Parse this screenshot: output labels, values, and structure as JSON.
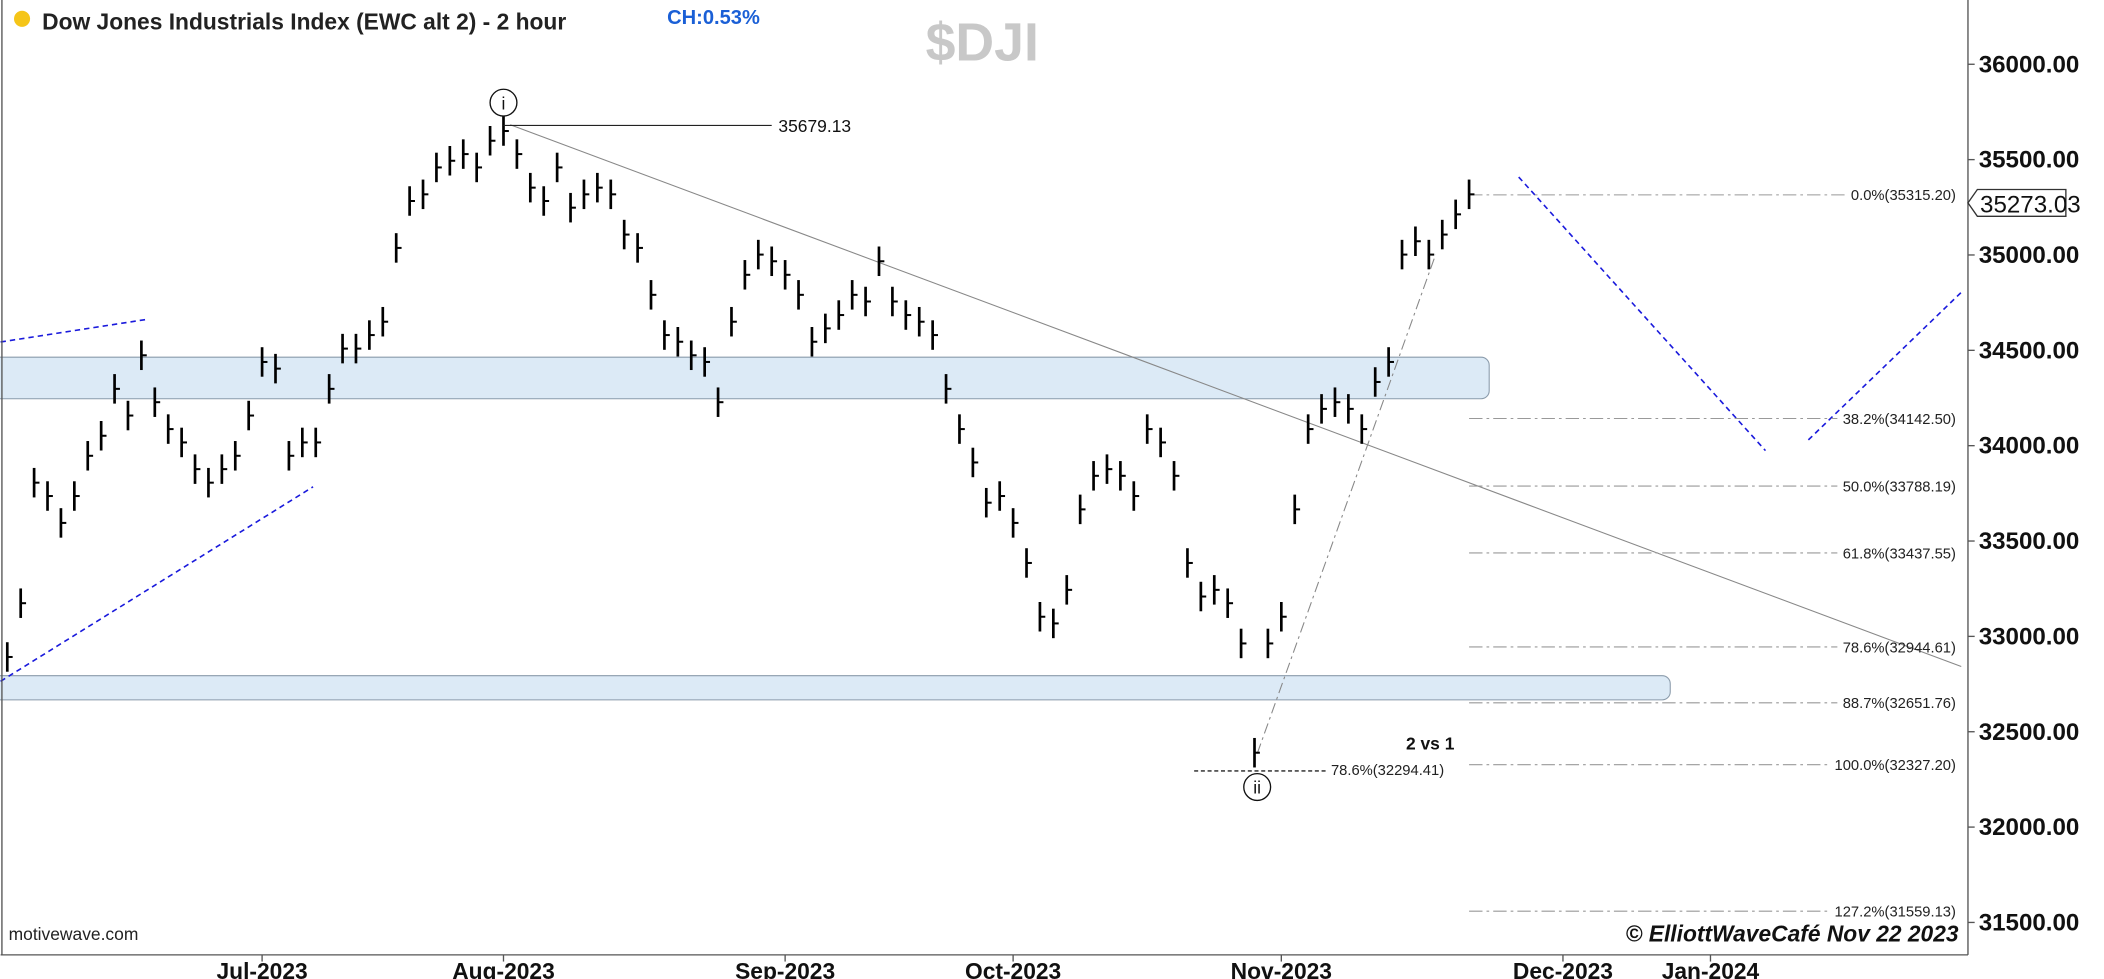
{
  "title": "Dow Jones Industrials Index (EWC alt 2) - 2 hour",
  "change": "CH:0.53%",
  "symbol": "$DJI",
  "watermark": "motivewave.com",
  "copyright": "© ElliottWaveCafé Nov 22 2023",
  "chart_data": {
    "type": "ohlc",
    "color": "#000000",
    "categories": [
      null,
      null,
      null,
      null,
      null,
      null,
      null,
      null,
      null,
      null,
      null,
      null,
      null,
      null,
      null,
      null,
      null,
      null,
      null,
      "Jul-2023",
      null,
      null,
      null,
      null,
      null,
      null,
      null,
      null,
      null,
      null,
      null,
      null,
      null,
      null,
      null,
      null,
      null,
      "Aug-2023",
      null,
      null,
      null,
      null,
      null,
      null,
      null,
      null,
      null,
      null,
      null,
      null,
      null,
      null,
      null,
      null,
      null,
      null,
      null,
      null,
      "Sep-2023",
      null,
      null,
      null,
      null,
      null,
      null,
      null,
      null,
      null,
      null,
      null,
      null,
      null,
      null,
      null,
      null,
      "Oct-2023",
      null,
      null,
      null,
      null,
      null,
      null,
      null,
      null,
      null,
      null,
      null,
      null,
      null,
      null,
      null,
      null,
      null,
      null,
      null,
      "Nov-2023",
      null,
      null,
      null,
      null,
      null,
      null,
      null,
      null,
      null,
      null,
      null,
      null,
      null,
      null,
      null,
      null,
      null,
      null,
      null,
      null,
      "Dec-2023",
      null,
      null,
      null,
      null,
      null,
      null,
      null,
      null,
      null,
      null,
      "Jan-2024",
      null,
      null,
      null,
      null,
      null,
      null,
      null,
      null,
      null,
      null,
      null,
      null,
      null,
      null,
      null,
      null,
      null,
      null,
      null
    ],
    "values": [
      32892,
      33174,
      33806,
      33736,
      33595,
      33736,
      33947,
      34052,
      34298,
      34158,
      34474,
      34228,
      34087,
      34017,
      33877,
      33806,
      33877,
      33947,
      34158,
      34439,
      34404,
      33947,
      34017,
      34017,
      34298,
      34509,
      34509,
      34580,
      34650,
      35037,
      35283,
      35318,
      35459,
      35494,
      35529,
      35459,
      35599,
      35650,
      35529,
      35353,
      35283,
      35459,
      35248,
      35318,
      35353,
      35318,
      35107,
      35037,
      34791,
      34580,
      34545,
      34474,
      34439,
      34228,
      34650,
      34896,
      35002,
      34967,
      34896,
      34791,
      34545,
      34615,
      34685,
      34791,
      34756,
      34967,
      34756,
      34685,
      34650,
      34580,
      34298,
      34087,
      33912,
      33701,
      33736,
      33595,
      33385,
      33103,
      33068,
      33244,
      33666,
      33842,
      33877,
      33842,
      33736,
      34087,
      34017,
      33842,
      33385,
      33209,
      33244,
      33174,
      32963,
      32390,
      32963,
      33103,
      33666,
      34087,
      34193,
      34228,
      34193,
      34087,
      34334,
      34439,
      35002,
      35072,
      35002,
      35107,
      35213,
      35318,
      null,
      null,
      null,
      null,
      null,
      null,
      null,
      null,
      null,
      null,
      null,
      null,
      null,
      null,
      null,
      null,
      null,
      null,
      null,
      null,
      null,
      null,
      null,
      null,
      null,
      null,
      null,
      null,
      null,
      null,
      null,
      null,
      null,
      null,
      null,
      null,
      null
    ],
    "ylim": [
      31330,
      36337
    ],
    "yticks": [
      {
        "value": 31500,
        "label": "31500.00"
      },
      {
        "value": 32000,
        "label": "32000.00"
      },
      {
        "value": 32500,
        "label": "32500.00"
      },
      {
        "value": 33000,
        "label": "33000.00"
      },
      {
        "value": 33500,
        "label": "33500.00"
      },
      {
        "value": 34000,
        "label": "34000.00"
      },
      {
        "value": 34500,
        "label": "34500.00"
      },
      {
        "value": 35000,
        "label": "35000.00"
      },
      {
        "value": 35500,
        "label": "35500.00"
      },
      {
        "value": 36000,
        "label": "36000.00"
      }
    ],
    "last_price": 35273.03,
    "wave_high": 35679.13,
    "wave_labels": [
      "i",
      "ii"
    ],
    "annotation": "2 vs 1",
    "retracement": {
      "value": 32294.41,
      "label": "78.6%(32294.41)"
    },
    "fib_levels": {
      "values": [
        35315.2,
        34142.5,
        33788.19,
        33437.55,
        32944.61,
        32651.76,
        32327.2,
        31559.13
      ],
      "value_labels": [
        "0.0%(35315.20)",
        "38.2%(34142.50)",
        "50.0%(33788.19)",
        "61.8%(33437.55)",
        "78.6%(32944.61)",
        "88.7%(32651.76)",
        "100.0%(32327.20)",
        "127.2%(31559.13)"
      ]
    },
    "zones": [
      {
        "top": 34464,
        "bottom": 34246
      },
      {
        "top": 32794,
        "bottom": 32667
      }
    ]
  }
}
